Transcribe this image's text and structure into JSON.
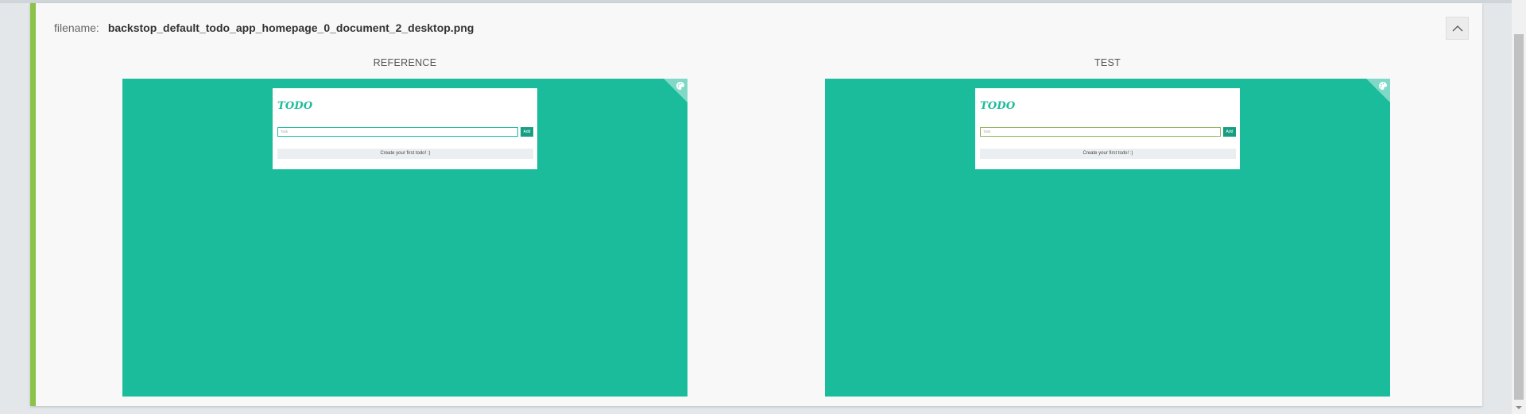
{
  "header": {
    "filename_label": "filename:",
    "filename_value": "backstop_default_todo_app_homepage_0_document_2_desktop.png",
    "collapse_icon": "chevron-up-icon"
  },
  "columns": {
    "reference": {
      "label": "REFERENCE",
      "app": {
        "logo": "TODO",
        "input_placeholder": "Task",
        "add_label": "Add",
        "empty_message": "Create your first todo! :)"
      }
    },
    "test": {
      "label": "TEST",
      "app": {
        "logo": "TODO",
        "input_placeholder": "Task",
        "add_label": "Add",
        "empty_message": "Create your first todo! :)"
      }
    }
  },
  "colors": {
    "status_pass": "#8bc34a",
    "screenshot_background": "#1bbc9b",
    "page_background": "#e3e7ea"
  },
  "icons": {
    "corner": "paint-palette-icon"
  }
}
